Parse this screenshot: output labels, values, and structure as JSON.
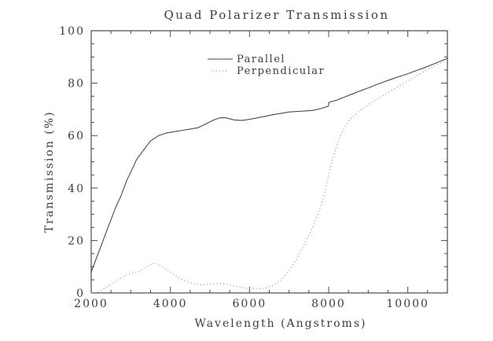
{
  "chart_data": {
    "type": "line",
    "title": "Quad Polarizer Transmission",
    "xlabel": "Wavelength (Angstroms)",
    "ylabel": "Transmission (%)",
    "xlim": [
      2000,
      11000
    ],
    "ylim": [
      0,
      100
    ],
    "x_major_ticks": [
      2000,
      4000,
      6000,
      8000,
      10000
    ],
    "x_tick_labels": [
      "2000",
      "4000",
      "6000",
      "8000",
      "10000"
    ],
    "x_minor_step": 500,
    "y_major_ticks": [
      0,
      20,
      40,
      60,
      80,
      100
    ],
    "y_tick_labels": [
      "0",
      "20",
      "40",
      "60",
      "80",
      "100"
    ],
    "y_minor_step": 5,
    "grid": "off",
    "legend_position": "upper-left-inside",
    "frame_color": "#4a4a4a",
    "text_color": "#3c3c3c",
    "legend": [
      {
        "label": "Parallel",
        "style": "solid",
        "color": "#4a4a4a"
      },
      {
        "label": "Perpendicular",
        "style": "dotted",
        "color": "#9a9a9a"
      }
    ],
    "series": [
      {
        "name": "Parallel",
        "style": "solid",
        "color": "#4a4a4a",
        "x": [
          2000,
          2100,
          2250,
          2400,
          2500,
          2600,
          2750,
          2900,
          3000,
          3150,
          3300,
          3500,
          3700,
          3900,
          4100,
          4300,
          4500,
          4700,
          4900,
          5100,
          5250,
          5400,
          5600,
          5800,
          6000,
          6200,
          6400,
          6600,
          6800,
          7000,
          7200,
          7400,
          7600,
          7800,
          7990,
          8010,
          8200,
          8400,
          8600,
          8800,
          9000,
          9200,
          9400,
          9600,
          9800,
          10000,
          10200,
          10400,
          10600,
          10800,
          11000
        ],
        "y": [
          8,
          12,
          18,
          24,
          28,
          32,
          37,
          43,
          46,
          51,
          54,
          58,
          60,
          61,
          61.5,
          62,
          62.5,
          63,
          64.5,
          66,
          66.8,
          66.8,
          66,
          65.8,
          66.2,
          66.8,
          67.4,
          68,
          68.5,
          69,
          69.2,
          69.4,
          69.6,
          70.3,
          71.2,
          72.7,
          73.5,
          74.7,
          75.9,
          77.1,
          78.2,
          79.4,
          80.5,
          81.6,
          82.6,
          83.6,
          84.7,
          85.8,
          87,
          88.2,
          89.5
        ]
      },
      {
        "name": "Perpendicular",
        "style": "dotted",
        "color": "#9a9a9a",
        "x": [
          2000,
          2150,
          2300,
          2500,
          2700,
          2900,
          3050,
          3200,
          3400,
          3600,
          3800,
          4000,
          4200,
          4400,
          4600,
          4800,
          5000,
          5200,
          5400,
          5600,
          5800,
          6000,
          6200,
          6400,
          6600,
          6800,
          7000,
          7200,
          7400,
          7600,
          7800,
          7900,
          8000,
          8100,
          8200,
          8300,
          8400,
          8500,
          8700,
          8900,
          9100,
          9300,
          9500,
          9700,
          9900,
          10100,
          10300,
          10500,
          10700,
          10900,
          11000
        ],
        "y": [
          0,
          0.2,
          1.5,
          3.2,
          5.2,
          7,
          7.6,
          8.3,
          10,
          11.5,
          10,
          8,
          5.9,
          4.4,
          3.4,
          3.1,
          3.4,
          3.6,
          3.4,
          2.7,
          2.1,
          1.7,
          1.5,
          1.9,
          2.9,
          4.9,
          8.5,
          13,
          19,
          25,
          33,
          38,
          45,
          51,
          56,
          60,
          63,
          65.5,
          68.5,
          70.8,
          72.8,
          74.6,
          76.4,
          78.2,
          80,
          81.8,
          83.5,
          85.2,
          86.9,
          88.2,
          88.8
        ]
      }
    ]
  }
}
